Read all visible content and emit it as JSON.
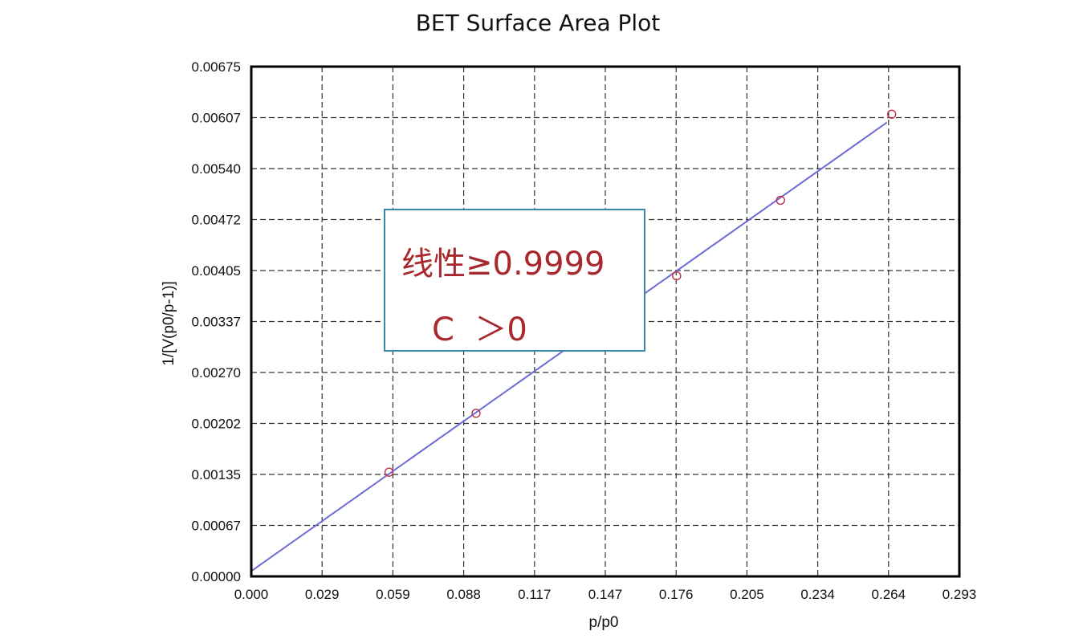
{
  "chart_data": {
    "type": "scatter",
    "title": "BET Surface Area Plot",
    "xlabel": "p/p0",
    "ylabel": "1/[V(p0/p-1)]",
    "xlim": [
      0.0,
      0.293
    ],
    "ylim": [
      0.0,
      0.00675
    ],
    "x_ticks": [
      "0.000",
      "0.029",
      "0.059",
      "0.088",
      "0.117",
      "0.147",
      "0.176",
      "0.205",
      "0.234",
      "0.264",
      "0.293"
    ],
    "y_ticks": [
      "0.00000",
      "0.00067",
      "0.00135",
      "0.00202",
      "0.00270",
      "0.00337",
      "0.00405",
      "0.00472",
      "0.00540",
      "0.00607",
      "0.00675"
    ],
    "grid": true,
    "series": [
      {
        "type": "scatter",
        "marker": "open-circle",
        "color": "#c0304a",
        "points": [
          {
            "x": 0.057,
            "y": 0.00138
          },
          {
            "x": 0.093,
            "y": 0.00216
          },
          {
            "x": 0.176,
            "y": 0.00398
          },
          {
            "x": 0.219,
            "y": 0.00498
          },
          {
            "x": 0.265,
            "y": 0.00612
          }
        ]
      },
      {
        "type": "line",
        "color": "#6b6bd6",
        "x": [
          0.0,
          0.263
        ],
        "y": [
          7e-05,
          0.00601
        ]
      }
    ],
    "annotations": [
      "线性≥0.9999",
      "C  ＞0"
    ]
  }
}
